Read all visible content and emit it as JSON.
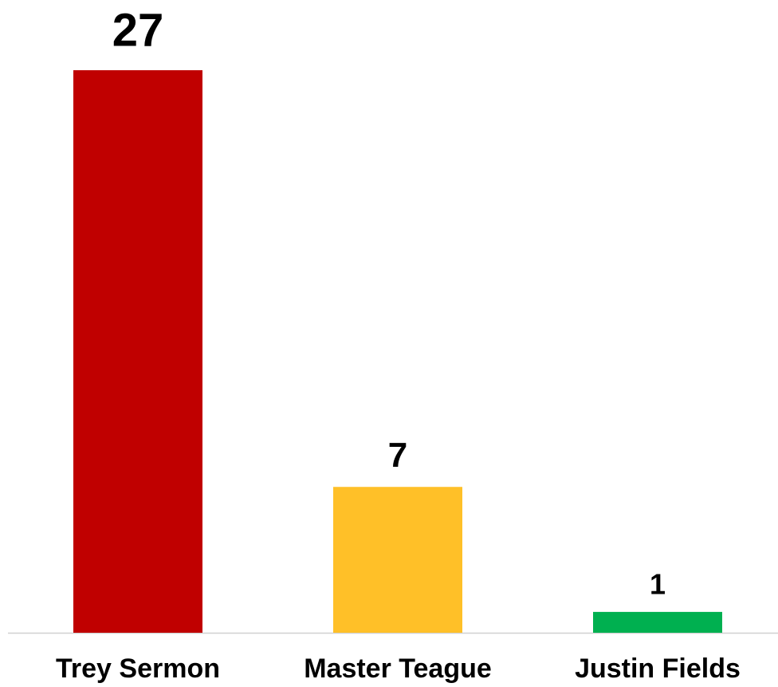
{
  "chart_data": {
    "type": "bar",
    "categories": [
      "Trey Sermon",
      "Master Teague",
      "Justin Fields"
    ],
    "values": [
      27,
      7,
      1
    ],
    "colors": [
      "#c00000",
      "#ffc028",
      "#00b050"
    ]
  }
}
